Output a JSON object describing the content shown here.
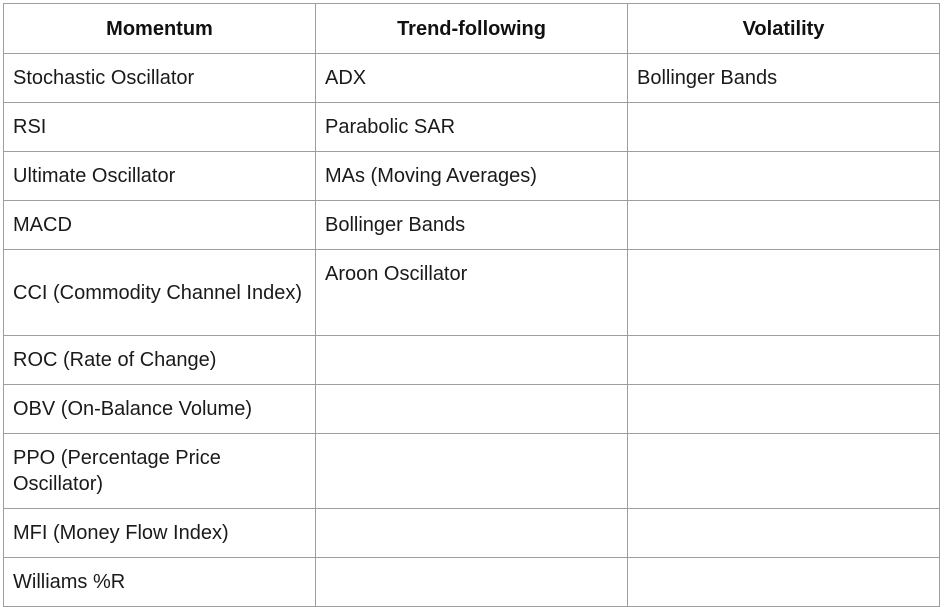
{
  "table": {
    "headers": [
      "Momentum",
      "Trend-following",
      "Volatility"
    ],
    "rows": [
      [
        "Stochastic Oscillator",
        "ADX",
        "Bollinger Bands"
      ],
      [
        "RSI",
        "Parabolic SAR",
        ""
      ],
      [
        "Ultimate Oscillator",
        "MAs (Moving Averages)",
        ""
      ],
      [
        "MACD",
        "Bollinger Bands",
        ""
      ],
      [
        "CCI (Commodity Channel Index)",
        "Aroon Oscillator",
        ""
      ],
      [
        "ROC (Rate of Change)",
        "",
        ""
      ],
      [
        "OBV (On-Balance Volume)",
        "",
        ""
      ],
      [
        "PPO (Percentage Price Oscillator)",
        "",
        ""
      ],
      [
        "MFI (Money Flow Index)",
        "",
        ""
      ],
      [
        "Williams %R",
        "",
        ""
      ]
    ]
  }
}
